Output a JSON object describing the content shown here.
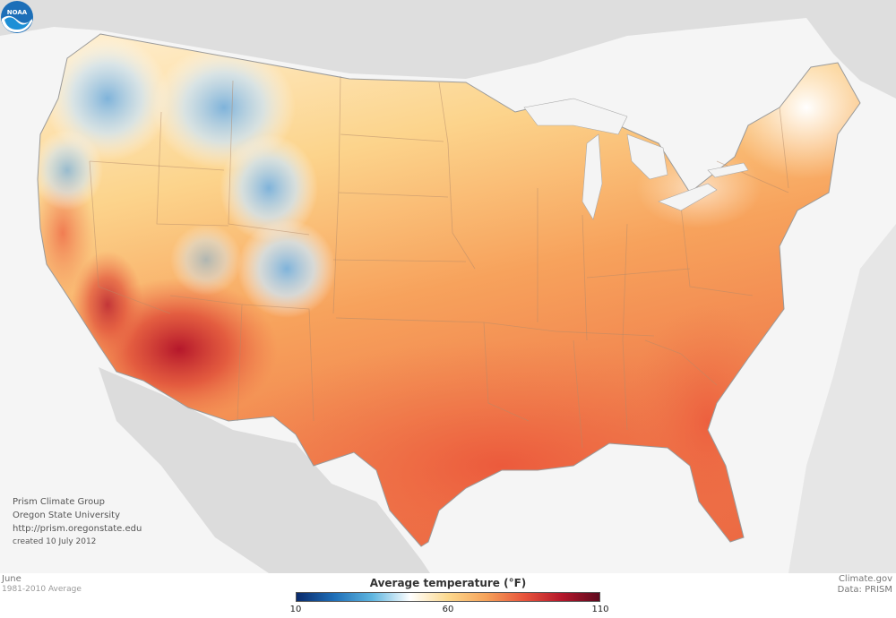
{
  "credits": {
    "line1": "Prism Climate Group",
    "line2": "Oregon State University",
    "line3": "http://prism.oregonstate.edu",
    "line4": "created 10 July 2012"
  },
  "footer": {
    "month": "June",
    "period": "1981-2010 Average",
    "source_site": "Climate.gov",
    "source_data": "Data: PRISM"
  },
  "legend": {
    "title": "Average temperature (°F)",
    "ticks": [
      "10",
      "60",
      "110"
    ],
    "min": 10,
    "mid": 60,
    "max": 110,
    "colors": [
      "#0a2a6b",
      "#1f6fb8",
      "#5fb6e0",
      "#ffffff",
      "#fcd98e",
      "#f6a35a",
      "#e8553c",
      "#b5172b",
      "#5e0a1e"
    ]
  },
  "logo": {
    "name": "noaa-logo",
    "text": "NOAA"
  }
}
